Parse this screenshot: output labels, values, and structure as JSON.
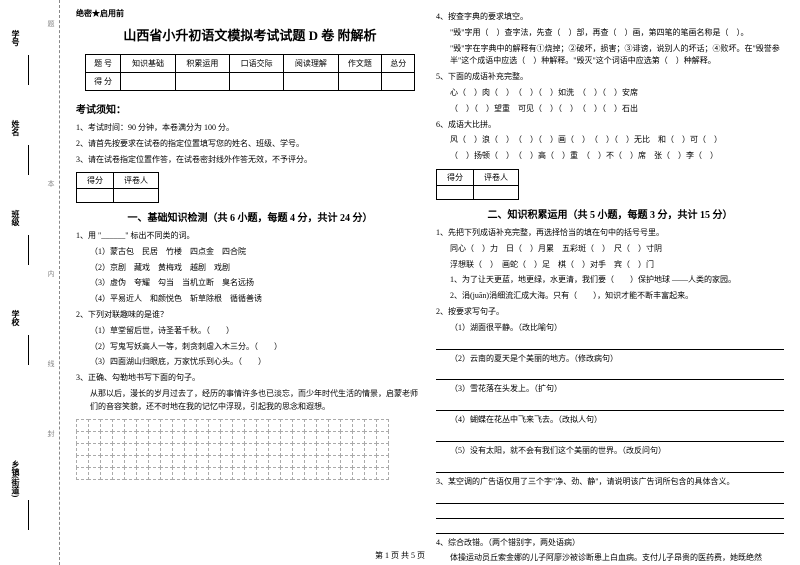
{
  "binding": {
    "labels": [
      "学号",
      "姓名",
      "班级",
      "学校",
      "乡镇(街道)"
    ],
    "dashmarks": [
      "题",
      "本",
      "内",
      "线",
      "封"
    ]
  },
  "secret": "绝密★启用前",
  "main_title": "山西省小升初语文模拟考试试题 D 卷 附解析",
  "score_table": {
    "headers": [
      "题 号",
      "知识基础",
      "积累运用",
      "口语交际",
      "阅读理解",
      "作文题",
      "总分"
    ],
    "row2": [
      "得 分",
      "",
      "",
      "",
      "",
      "",
      ""
    ]
  },
  "notice": {
    "title": "考试须知：",
    "items": [
      "1、考试时间：90 分钟，本卷满分为 100 分。",
      "2、请首先按要求在试卷的指定位置填写您的姓名、班级、学号。",
      "3、请在试卷指定位置作答，在试卷密封线外作答无效，不予评分。"
    ]
  },
  "score_small": {
    "c1": "得分",
    "c2": "评卷人"
  },
  "section1": "一、基础知识检测（共 6 小题，每题 4 分，共计 24 分）",
  "q1": {
    "stem": "1、用 \"______\" 标出不同类的词。",
    "rows": [
      "（1）蒙古包　民居　竹楼　四点金　四合院",
      "（2）京剧　藏戏　黄梅戏　越剧　戏剧",
      "（3）虚伪　夸耀　勾当　当机立断　臭名远扬",
      "（4）平易近人　和颜悦色　斩草除根　循循善诱"
    ]
  },
  "q2": {
    "stem": "2、下列对联趣味的是谁？",
    "rows": [
      "（1）草堂留后世，诗圣著千秋。（　　）",
      "（2）写鬼写妖高人一等，刺贪刺虐入木三分。（　　）",
      "（3）四面湖山归眼底，万家忧乐到心头。（　　）"
    ]
  },
  "q3": {
    "stem": "3、正确、勾勒地书写下面的句子。",
    "body": "从那以后，漫长的岁月过去了，经历的事情许多也已淡忘，而少年时代生活的情景，启蒙老师们的音容笑貌，还不时地在我的记忆中浮现，引起我的思念和遐想。"
  },
  "grid": {
    "rows": 5,
    "cols": 26,
    "border_color": "#aaaaaa"
  },
  "q4": {
    "stem": "4、按查字典的要求填空。",
    "lines": [
      "\"毁\"字用（　）查字法，先查（　）部，再查（　）画，第四笔的笔画名称是（　）。",
      "\"毁\"字在字典中的解释有①烧掉；②破坏，损害；③诽谤，说别人的坏话；④败坏。在\"毁誉参半\"这个成语中应选（　）种解释。\"毁灭\"这个词语中应选第（　）种解释。"
    ]
  },
  "q5": {
    "stem": "5、下面的成语补充完整。",
    "rows": [
      "心（　）肉（　）　（　）（　）如洗　（　）（　）安席",
      "（　）（　）望重　可见（　）（　）　（　）（　）石出"
    ]
  },
  "q6": {
    "stem": "6、成语大比拼。",
    "rows": [
      "风（　）浪（　）　（　）（　）画（　）　（　）（　）无比　和（　）可（　）",
      "（　）扬顿（　）　（　）高（　）重　（　）不（　）席　张（　）李（　）"
    ]
  },
  "section2": "二、知识积累运用（共 5 小题，每题 3 分，共计 15 分）",
  "r1": {
    "stem": "1、先把下列成语补充完整，再选择恰当的填在句中的括号号里。",
    "rows": [
      "同心（　）力　日（　）月累　五彩斑（　）　尺（　）寸阴",
      "浮想联（　）　画蛇（　）足　棋（　）对手　宾（　）门",
      "1、为了让天更蓝，地更绿，水更清，我们要（　　）保护地球 ——人类的家园。",
      "2、涓(juān)涓细流汇成大海。只有（　　），知识才能不断丰富起来。"
    ]
  },
  "r2": {
    "stem": "2、按要求写句子。",
    "items": [
      "（1）湖面很平静。（改比喻句）",
      "（2）云南的夏天是个美丽的地方。（修改病句）",
      "（3）雪花落在头发上。（扩句）",
      "（4）蝴蝶在花丛中飞来飞去。（改拟人句）",
      "（5）没有太阳，就不会有我们这个美丽的世界。（改反问句）"
    ]
  },
  "r3": {
    "stem": "3、某空调的广告语仅用了三个字\"净、劲、静\"，请说明该广告词所包含的具体含义。"
  },
  "r4": {
    "stem": "4、综合改错。（两个错别字，两处语病）",
    "body": "体操运动员丘索金娜的儿子阿廖沙被诊断患上白血病。支付儿子昂贵的医药费，她既绝然"
  },
  "footer": "第 1 页 共 5 页",
  "colors": {
    "text": "#000000",
    "dash": "#aaaaaa",
    "binding_dash": "#888888"
  }
}
